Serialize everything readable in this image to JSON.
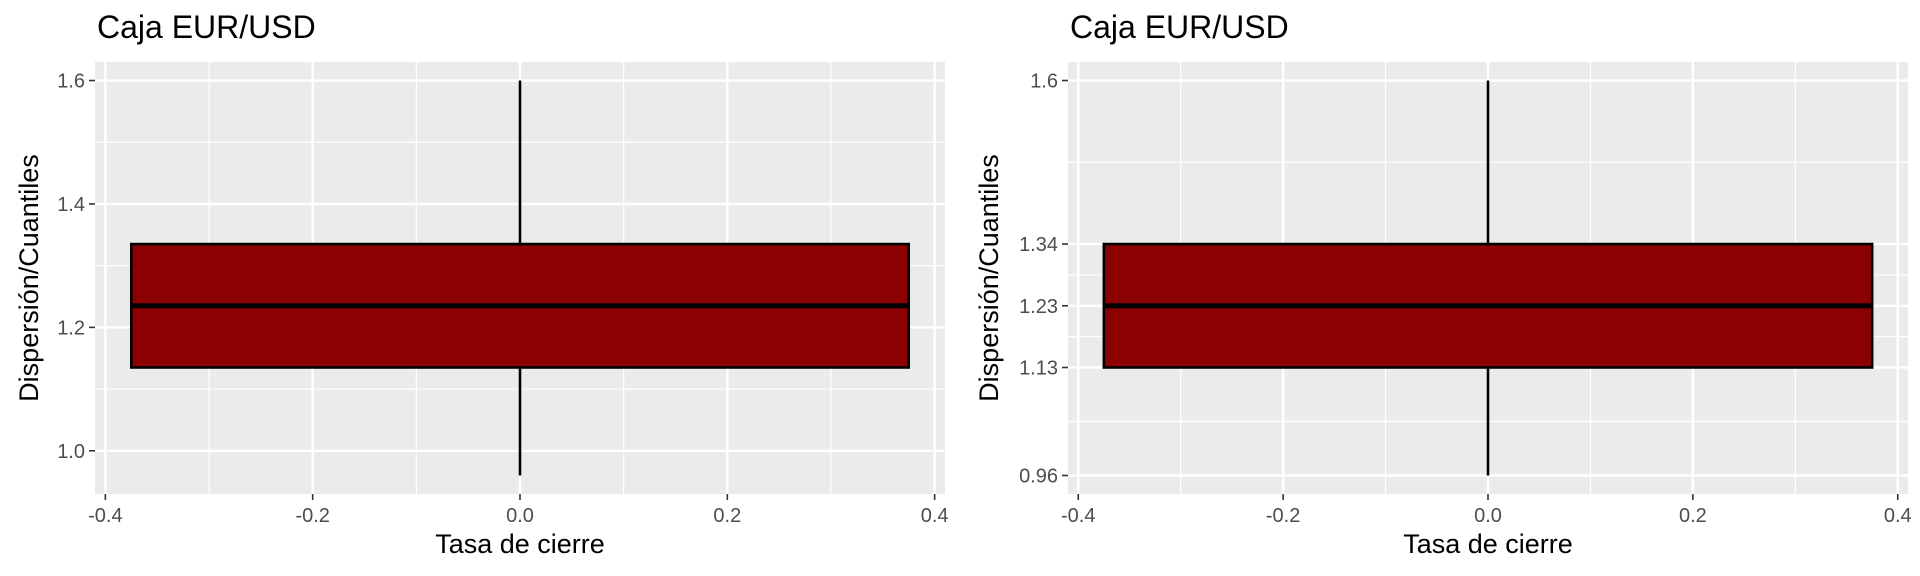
{
  "colors": {
    "panel_bg": "#ebebeb",
    "grid": "#ffffff",
    "box_fill": "#8b0000",
    "box_stroke": "#000000",
    "tick_text": "#4d4d4d"
  },
  "chart_data": [
    {
      "type": "boxplot",
      "title": "Caja EUR/USD",
      "xlabel": "Tasa de cierre",
      "ylabel": "Dispersión/Cuantiles",
      "x_ticks": [
        "-0.4",
        "-0.2",
        "0.0",
        "0.2",
        "0.4"
      ],
      "x_tick_values": [
        -0.4,
        -0.2,
        0.0,
        0.2,
        0.4
      ],
      "y_ticks": [
        "1.0",
        "1.2",
        "1.4",
        "1.6"
      ],
      "y_tick_values": [
        1.0,
        1.2,
        1.4,
        1.6
      ],
      "xlim": [
        -0.41,
        0.41
      ],
      "ylim": [
        0.93,
        1.63
      ],
      "grid": true,
      "box": {
        "x_center": 0.0,
        "x_left": -0.375,
        "x_right": 0.375,
        "min": 0.96,
        "q1": 1.135,
        "median": 1.235,
        "q3": 1.335,
        "max": 1.6
      }
    },
    {
      "type": "boxplot",
      "title": "Caja EUR/USD",
      "xlabel": "Tasa de cierre",
      "ylabel": "Dispersión/Cuantiles",
      "x_ticks": [
        "-0.4",
        "-0.2",
        "0.0",
        "0.2",
        "0.4"
      ],
      "x_tick_values": [
        -0.4,
        -0.2,
        0.0,
        0.2,
        0.4
      ],
      "y_ticks": [
        "0.96",
        "1.13",
        "1.23",
        "1.34",
        "1.6"
      ],
      "y_tick_values": [
        0.96,
        1.135,
        1.235,
        1.335,
        1.6
      ],
      "xlim": [
        -0.41,
        0.41
      ],
      "ylim": [
        0.93,
        1.63
      ],
      "grid": true,
      "box": {
        "x_center": 0.0,
        "x_left": -0.375,
        "x_right": 0.375,
        "min": 0.96,
        "q1": 1.135,
        "median": 1.235,
        "q3": 1.335,
        "max": 1.6
      }
    }
  ]
}
